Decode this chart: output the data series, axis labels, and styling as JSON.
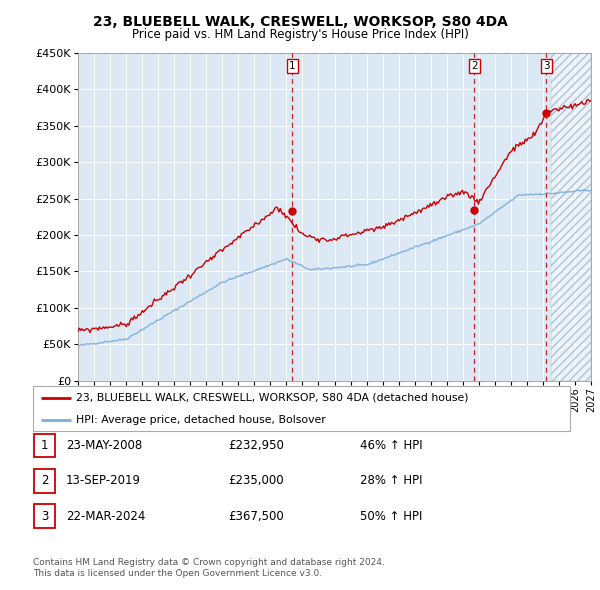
{
  "title": "23, BLUEBELL WALK, CRESWELL, WORKSOP, S80 4DA",
  "subtitle": "Price paid vs. HM Land Registry's House Price Index (HPI)",
  "ylim": [
    0,
    450000
  ],
  "yticks": [
    0,
    50000,
    100000,
    150000,
    200000,
    250000,
    300000,
    350000,
    400000,
    450000
  ],
  "ytick_labels": [
    "£0",
    "£50K",
    "£100K",
    "£150K",
    "£200K",
    "£250K",
    "£300K",
    "£350K",
    "£400K",
    "£450K"
  ],
  "line1_color": "#cc0000",
  "line2_color": "#7aaddb",
  "vline_color": "#cc0000",
  "legend_line1": "23, BLUEBELL WALK, CRESWELL, WORKSOP, S80 4DA (detached house)",
  "legend_line2": "HPI: Average price, detached house, Bolsover",
  "table_rows": [
    [
      "1",
      "23-MAY-2008",
      "£232,950",
      "46% ↑ HPI"
    ],
    [
      "2",
      "13-SEP-2019",
      "£235,000",
      "28% ↑ HPI"
    ],
    [
      "3",
      "22-MAR-2024",
      "£367,500",
      "50% ↑ HPI"
    ]
  ],
  "footnote1": "Contains HM Land Registry data © Crown copyright and database right 2024.",
  "footnote2": "This data is licensed under the Open Government Licence v3.0.",
  "sale_dates": [
    2008.38,
    2019.71,
    2024.22
  ],
  "sale_prices": [
    232950,
    235000,
    367500
  ],
  "sale_labels": [
    "1",
    "2",
    "3"
  ],
  "xmin": 1995.0,
  "xmax": 2027.0,
  "hatch_start": 2024.5,
  "chart_bg": "#dce9f5",
  "hatch_bg": "#c8d8e8"
}
